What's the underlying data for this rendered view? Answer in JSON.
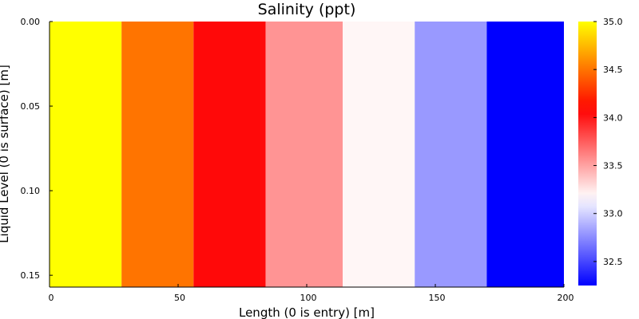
{
  "chart_data": {
    "type": "heatmap",
    "title": "Salinity (ppt)",
    "xlabel": "Length (0 is entry) [m]",
    "ylabel": "Liquid Level (0 is surface) [m]",
    "x_edges": [
      0,
      28,
      56,
      84,
      114,
      142,
      170,
      200
    ],
    "y_range": [
      0.0,
      0.157
    ],
    "xlim": [
      0,
      200
    ],
    "ylim": [
      0.0,
      0.157
    ],
    "y_inverted": true,
    "cells": [
      35.0,
      34.5,
      34.05,
      33.55,
      33.2,
      32.8,
      32.25
    ],
    "x_ticks": [
      {
        "value": 0,
        "label": "0"
      },
      {
        "value": 50,
        "label": "50"
      },
      {
        "value": 100,
        "label": "100"
      },
      {
        "value": 150,
        "label": "150"
      },
      {
        "value": 200,
        "label": "200"
      }
    ],
    "y_ticks": [
      {
        "value": 0.0,
        "label": "0.00"
      },
      {
        "value": 0.05,
        "label": "0.05"
      },
      {
        "value": 0.1,
        "label": "0.10"
      },
      {
        "value": 0.15,
        "label": "0.15"
      }
    ],
    "colorbar": {
      "range": [
        32.25,
        35.0
      ],
      "ticks": [
        {
          "value": 32.5,
          "label": "32.5"
        },
        {
          "value": 33.0,
          "label": "33.0"
        },
        {
          "value": 33.5,
          "label": "33.5"
        },
        {
          "value": 34.0,
          "label": "34.0"
        },
        {
          "value": 34.5,
          "label": "34.5"
        },
        {
          "value": 35.0,
          "label": "35.0"
        }
      ],
      "colormap": [
        "#0000ff",
        "#ffffff",
        "#ff0000",
        "#ffff00"
      ]
    },
    "grid": false
  }
}
